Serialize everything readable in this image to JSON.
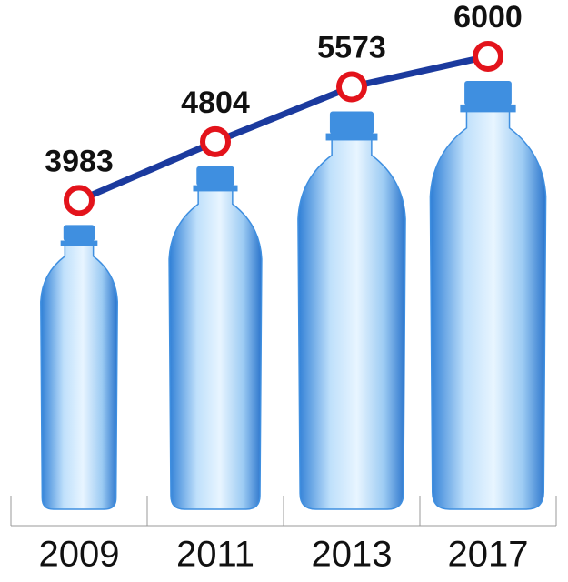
{
  "chart_data": {
    "type": "line",
    "categories": [
      "2009",
      "2011",
      "2013",
      "2017"
    ],
    "values": [
      3983,
      4804,
      5573,
      6000
    ],
    "color": "#1b3a9e",
    "marker_color": "#e3131b",
    "bottle_color": "#3f8fe0"
  }
}
